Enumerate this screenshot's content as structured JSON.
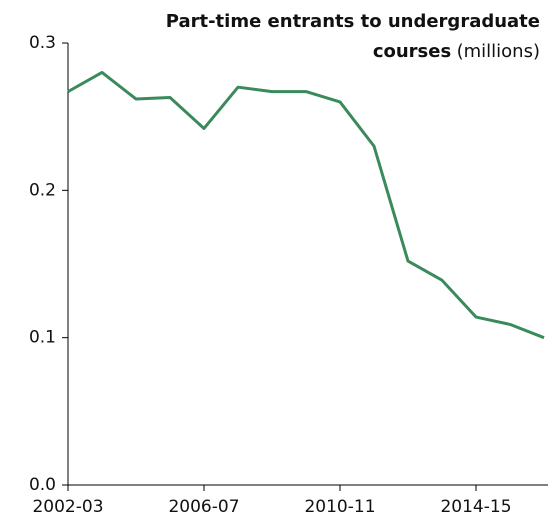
{
  "chart_data": {
    "type": "line",
    "title": {
      "lines": [
        "Part-time entrants to undergraduate",
        "courses"
      ],
      "unit": "(millions)"
    },
    "categories": [
      "2002-03",
      null,
      null,
      null,
      "2006-07",
      null,
      null,
      null,
      "2010-11",
      null,
      null,
      null,
      "2014-15",
      null,
      null
    ],
    "series": [
      {
        "name": "Part-time entrants",
        "color": "#3a8a5c",
        "values": [
          0.267,
          0.28,
          0.262,
          0.263,
          0.242,
          0.27,
          0.267,
          0.267,
          0.26,
          0.23,
          0.152,
          0.139,
          0.114,
          0.109,
          0.1
        ]
      }
    ],
    "ylim": [
      0,
      0.3
    ],
    "yticks": [
      {
        "value": 0,
        "label": "0.0"
      },
      0.1,
      0.2,
      0.3
    ],
    "grid": false
  }
}
